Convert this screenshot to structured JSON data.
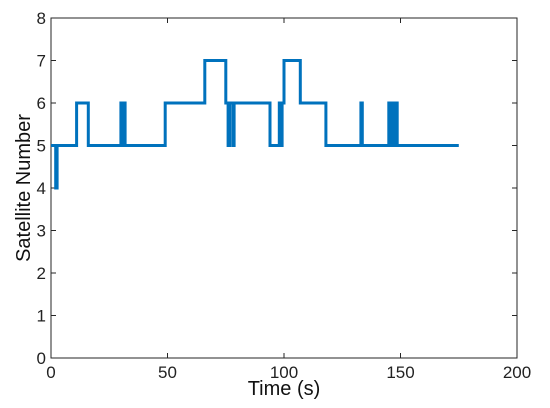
{
  "chart_data": {
    "type": "line",
    "title": "",
    "xlabel": "Time (s)",
    "ylabel": "Satellite Number",
    "xlim": [
      0,
      200
    ],
    "ylim": [
      0,
      8
    ],
    "xticks": [
      0,
      50,
      100,
      150,
      200
    ],
    "yticks": [
      0,
      1,
      2,
      3,
      4,
      5,
      6,
      7,
      8
    ],
    "grid": false,
    "line_color": "#0072BD",
    "series": [
      {
        "step": true,
        "points": [
          [
            0,
            5
          ],
          [
            2,
            5
          ],
          [
            2,
            4
          ],
          [
            2.6,
            4
          ],
          [
            2.6,
            5
          ],
          [
            11,
            5
          ],
          [
            11,
            6
          ],
          [
            16,
            6
          ],
          [
            16,
            5
          ],
          [
            30,
            5
          ],
          [
            30,
            6
          ],
          [
            30.6,
            6
          ],
          [
            30.6,
            5
          ],
          [
            31.2,
            5
          ],
          [
            31.2,
            6
          ],
          [
            31.8,
            6
          ],
          [
            31.8,
            5
          ],
          [
            49,
            5
          ],
          [
            49,
            6
          ],
          [
            66,
            6
          ],
          [
            66,
            7
          ],
          [
            75,
            7
          ],
          [
            75,
            6
          ],
          [
            76,
            6
          ],
          [
            76,
            5
          ],
          [
            76.6,
            5
          ],
          [
            76.6,
            6
          ],
          [
            78,
            6
          ],
          [
            78,
            5
          ],
          [
            78.6,
            5
          ],
          [
            78.6,
            6
          ],
          [
            94,
            6
          ],
          [
            94,
            5
          ],
          [
            98,
            5
          ],
          [
            98,
            6
          ],
          [
            98.6,
            6
          ],
          [
            98.6,
            5
          ],
          [
            99.2,
            5
          ],
          [
            99.2,
            6
          ],
          [
            100,
            6
          ],
          [
            100,
            7
          ],
          [
            107,
            7
          ],
          [
            107,
            6
          ],
          [
            118,
            6
          ],
          [
            118,
            5
          ],
          [
            133,
            5
          ],
          [
            133,
            6
          ],
          [
            133.6,
            6
          ],
          [
            133.6,
            5
          ],
          [
            145,
            5
          ],
          [
            145,
            6
          ],
          [
            145.6,
            6
          ],
          [
            145.6,
            5
          ],
          [
            146.5,
            5
          ],
          [
            146.5,
            6
          ],
          [
            147.1,
            6
          ],
          [
            147.1,
            5
          ],
          [
            148,
            5
          ],
          [
            148,
            6
          ],
          [
            148.6,
            6
          ],
          [
            148.6,
            5
          ],
          [
            175,
            5
          ]
        ]
      }
    ]
  }
}
